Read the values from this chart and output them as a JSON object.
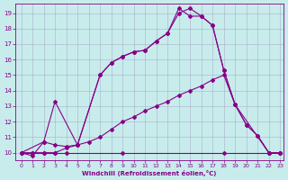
{
  "xlabel": "Windchill (Refroidissement éolien,°C)",
  "background_color": "#c8ecec",
  "line_color": "#880088",
  "xlim": [
    -0.5,
    23.3
  ],
  "ylim": [
    9.5,
    19.6
  ],
  "xticks": [
    0,
    1,
    2,
    3,
    4,
    5,
    6,
    7,
    8,
    9,
    10,
    11,
    12,
    13,
    14,
    15,
    16,
    17,
    18,
    19,
    20,
    21,
    22,
    23
  ],
  "yticks": [
    10,
    11,
    12,
    13,
    14,
    15,
    16,
    17,
    18,
    19
  ],
  "line1_x": [
    0,
    1,
    2,
    3,
    4,
    5,
    7,
    8,
    9,
    10,
    11,
    12,
    13,
    14,
    15,
    16,
    17,
    18,
    19,
    20,
    21,
    22,
    23
  ],
  "line1_y": [
    10.0,
    9.8,
    10.7,
    10.5,
    10.4,
    10.5,
    15.0,
    15.8,
    16.2,
    16.5,
    16.6,
    17.2,
    17.7,
    19.0,
    19.3,
    18.8,
    18.2,
    15.3,
    13.1,
    11.8,
    11.1,
    10.0,
    10.0
  ],
  "line2_x": [
    0,
    2,
    3,
    5,
    7,
    8,
    9,
    10,
    11,
    12,
    13,
    14,
    15,
    16,
    17,
    18,
    19,
    22,
    23
  ],
  "line2_y": [
    10.0,
    10.7,
    13.3,
    10.5,
    15.0,
    15.8,
    16.2,
    16.5,
    16.6,
    17.2,
    17.7,
    19.3,
    18.8,
    18.8,
    18.2,
    15.3,
    13.1,
    10.0,
    10.0
  ],
  "line3_x": [
    0,
    1,
    2,
    3,
    4,
    5,
    6,
    7,
    8,
    9,
    10,
    11,
    12,
    13,
    14,
    15,
    16,
    17,
    18,
    19,
    20,
    21,
    22,
    23
  ],
  "line3_y": [
    10.0,
    10.0,
    10.0,
    10.0,
    10.3,
    10.5,
    10.7,
    11.0,
    11.5,
    12.0,
    12.3,
    12.7,
    13.0,
    13.3,
    13.7,
    14.0,
    14.3,
    14.7,
    15.0,
    13.1,
    11.8,
    11.1,
    10.0,
    10.0
  ],
  "line4_x": [
    0,
    1,
    2,
    3,
    4,
    9,
    18,
    22,
    23
  ],
  "line4_y": [
    10.0,
    10.0,
    10.0,
    10.0,
    10.0,
    10.0,
    10.0,
    10.0,
    10.0
  ]
}
